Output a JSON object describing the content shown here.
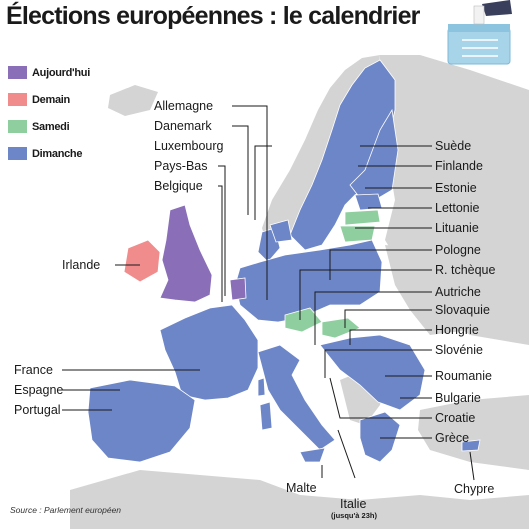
{
  "title": "Élections européennes : le calendrier",
  "colors": {
    "aujourdhui": "#8a6fb8",
    "demain": "#f08c8c",
    "samedi": "#8fcf9f",
    "dimanche": "#6d86c8",
    "non_eu_land": "#d4d4d4",
    "sea": "#ffffff"
  },
  "legend": [
    {
      "label": "Aujourd'hui",
      "color": "#8a6fb8"
    },
    {
      "label": "Demain",
      "color": "#f08c8c"
    },
    {
      "label": "Samedi",
      "color": "#8fcf9f"
    },
    {
      "label": "Dimanche",
      "color": "#6d86c8"
    }
  ],
  "labels": {
    "allemagne": "Allemagne",
    "danemark": "Danemark",
    "luxembourg": "Luxembourg",
    "pays_bas": "Pays-Bas",
    "belgique": "Belgique",
    "irlande": "Irlande",
    "france": "France",
    "espagne": "Espagne",
    "portugal": "Portugal",
    "suede": "Suède",
    "finlande": "Finlande",
    "estonie": "Estonie",
    "lettonie": "Lettonie",
    "lituanie": "Lituanie",
    "pologne": "Pologne",
    "r_tcheque": "R. tchèque",
    "autriche": "Autriche",
    "slovaquie": "Slovaquie",
    "hongrie": "Hongrie",
    "slovenie": "Slovénie",
    "roumanie": "Roumanie",
    "bulgarie": "Bulgarie",
    "croatie": "Croatie",
    "grece": "Grèce",
    "malte": "Malte",
    "italie": "Italie",
    "italie_note": "(jusqu'à 23h)",
    "chypre": "Chypre"
  },
  "source": "Source : Parlement européen",
  "icon": "ballot-box-icon"
}
